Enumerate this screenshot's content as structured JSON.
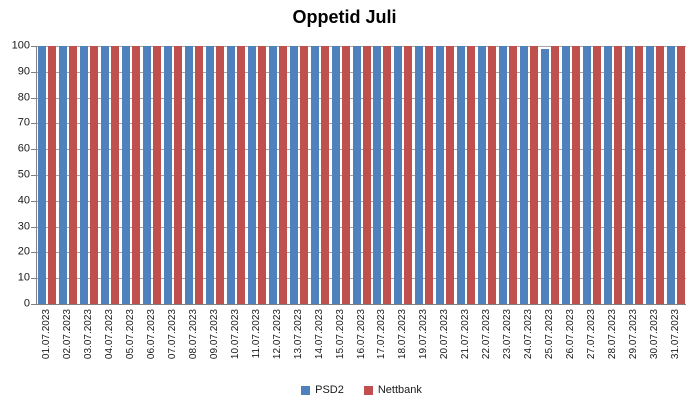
{
  "chart_data": {
    "type": "bar",
    "title": "Oppetid Juli",
    "categories": [
      "01.07.2023",
      "02.07.2023",
      "03.07.2023",
      "04.07.2023",
      "05.07.2023",
      "06.07.2023",
      "07.07.2023",
      "08.07.2023",
      "09.07.2023",
      "10.07.2023",
      "11.07.2023",
      "12.07.2023",
      "13.07.2023",
      "14.07.2023",
      "15.07.2023",
      "16.07.2023",
      "17.07.2023",
      "18.07.2023",
      "19.07.2023",
      "20.07.2023",
      "21.07.2023",
      "22.07.2023",
      "23.07.2023",
      "24.07.2023",
      "25.07.2023",
      "26.07.2023",
      "27.07.2023",
      "28.07.2023",
      "29.07.2023",
      "30.07.2023",
      "31.07.2023"
    ],
    "series": [
      {
        "name": "PSD2",
        "color": "#4F81BD",
        "values": [
          100,
          100,
          100,
          100,
          100,
          100,
          100,
          100,
          100,
          100,
          100,
          100,
          100,
          100,
          100,
          100,
          100,
          100,
          100,
          100,
          100,
          100,
          100,
          100,
          99,
          100,
          100,
          100,
          100,
          100,
          100
        ]
      },
      {
        "name": "Nettbank",
        "color": "#C0504D",
        "values": [
          100,
          100,
          100,
          100,
          100,
          100,
          100,
          100,
          100,
          100,
          100,
          100,
          100,
          100,
          100,
          100,
          100,
          100,
          100,
          100,
          100,
          100,
          100,
          100,
          100,
          100,
          100,
          100,
          100,
          100,
          100
        ]
      }
    ],
    "xlabel": "",
    "ylabel": "",
    "ylim": [
      0,
      100
    ],
    "ytick_step": 10,
    "grid": true,
    "legend_position": "bottom",
    "colors": {
      "gridline": "#a6a6a6",
      "axis": "#808080",
      "text": "#1a1a1a",
      "title_text": "#000000",
      "background": "#ffffff"
    }
  }
}
